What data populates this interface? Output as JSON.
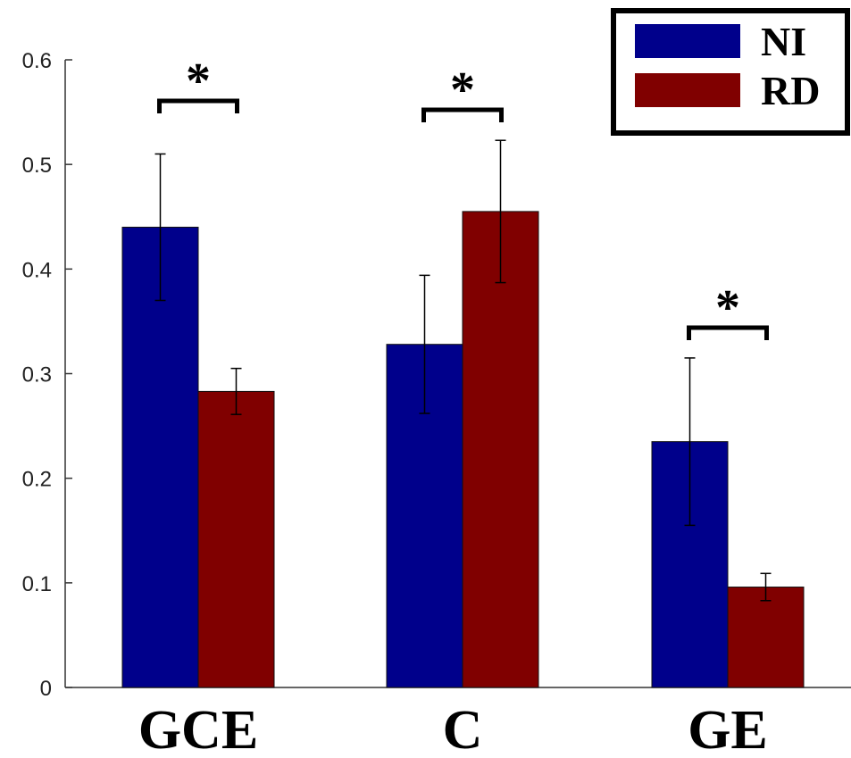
{
  "chart_data": {
    "type": "bar",
    "categories": [
      "GCE",
      "C",
      "GE"
    ],
    "series": [
      {
        "name": "NI",
        "values": [
          0.44,
          0.328,
          0.235
        ],
        "errors": [
          0.07,
          0.066,
          0.08
        ],
        "color": "#00008B"
      },
      {
        "name": "RD",
        "values": [
          0.283,
          0.455,
          0.096
        ],
        "errors": [
          0.022,
          0.068,
          0.013
        ],
        "color": "#800000"
      }
    ],
    "ylim": [
      0,
      0.6
    ],
    "yticks": [
      "0",
      "0.1",
      "0.2",
      "0.3",
      "0.4",
      "0.5",
      "0.6"
    ],
    "significance": [
      {
        "category": "GCE",
        "label": "*"
      },
      {
        "category": "C",
        "label": "*"
      },
      {
        "category": "GE",
        "label": "*"
      }
    ],
    "legend_position": "top-right",
    "title": "",
    "xlabel": "",
    "ylabel": ""
  }
}
